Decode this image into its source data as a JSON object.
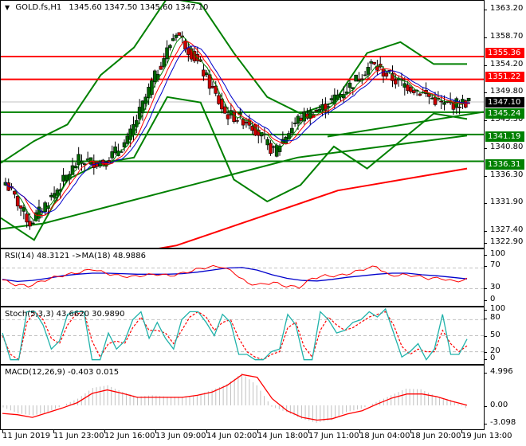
{
  "header": {
    "symbol": "GOLD.fs,H1",
    "ohlc": "1345.60 1347.50 1345.60 1347.10",
    "menu_icon": "triangle-down-icon"
  },
  "colors": {
    "resistance": "#ff0000",
    "support": "#008000",
    "current_price": "#000000",
    "candle_up": "#006400",
    "candle_down": "#cc0000",
    "rsi": "#ff0000",
    "rsi_ma": "#0000cc",
    "stoch_main": "#20b2aa",
    "stoch_signal": "#ff0000",
    "macd_hist": "#c0c0c0",
    "macd_signal": "#ff0000"
  },
  "price_axis": {
    "ticks": [
      "1363.20",
      "1358.70",
      "1354.20",
      "1349.80",
      "1345.30",
      "1340.80",
      "1336.30",
      "1331.90",
      "1327.40",
      "1322.90"
    ],
    "badges": [
      {
        "label": "1355.36",
        "type": "resistance"
      },
      {
        "label": "1351.22",
        "type": "resistance"
      },
      {
        "label": "1347.10",
        "type": "current_price"
      },
      {
        "label": "1345.24",
        "type": "support"
      },
      {
        "label": "1341.19",
        "type": "support"
      },
      {
        "label": "1336.31",
        "type": "support"
      }
    ]
  },
  "rsi_panel": {
    "title": "RSI(14) 48.3121  ->MA(18) 48.9886",
    "ticks": [
      "100",
      "70",
      "30",
      "0"
    ]
  },
  "stoch_panel": {
    "title": "Stoch(5,3,3) 43.6620 30.9890",
    "ticks": [
      "100",
      "80",
      "50",
      "20",
      "0"
    ]
  },
  "macd_panel": {
    "title": "MACD(12,26,9) -0.403 0.015",
    "ticks": [
      "4.996",
      "0.00",
      "-3.098"
    ]
  },
  "time_axis": {
    "labels": [
      "11 Jun 2019",
      "11 Jun 23:00",
      "12 Jun 16:00",
      "13 Jun 09:00",
      "14 Jun 02:00",
      "14 Jun 18:00",
      "17 Jun 11:00",
      "18 Jun 04:00",
      "18 Jun 20:00",
      "19 Jun 13:00"
    ]
  },
  "chart_data": [
    {
      "type": "line",
      "title": "GOLD.fs,H1 1345.60 1347.50 1345.60 1347.10",
      "ylim": [
        1320.6,
        1365.5
      ],
      "x": [
        "11 Jun 2019",
        "11 Jun 23:00",
        "12 Jun 16:00",
        "13 Jun 09:00",
        "14 Jun 02:00",
        "14 Jun 18:00",
        "17 Jun 11:00",
        "18 Jun 04:00",
        "18 Jun 20:00",
        "19 Jun 13:00"
      ],
      "horizontal_levels": {
        "resistance": [
          1355.36,
          1351.22
        ],
        "support": [
          1345.24,
          1341.19,
          1336.31
        ],
        "current_price": 1347.1
      },
      "series": [
        {
          "name": "Close (approx)",
          "values": [
            1332.5,
            1325.0,
            1330.5,
            1336.5,
            1336.0,
            1340.0,
            1350.5,
            1360.0,
            1353.5,
            1345.0,
            1343.5,
            1338.0,
            1344.0,
            1346.0,
            1349.5,
            1354.0,
            1351.0,
            1349.0,
            1346.5,
            1347.1
          ]
        },
        {
          "name": "Bollinger upper",
          "values": [
            1336,
            1340,
            1343,
            1352,
            1357,
            1366,
            1365,
            1356,
            1348,
            1345,
            1347,
            1356,
            1358,
            1354,
            1354
          ]
        },
        {
          "name": "Bollinger lower",
          "values": [
            1326,
            1322,
            1333,
            1336,
            1337,
            1348,
            1347,
            1333,
            1329,
            1332,
            1339,
            1335,
            1340,
            1345,
            1344
          ]
        },
        {
          "name": "MA long (green)",
          "values": [
            1324,
            1325,
            1327,
            1329,
            1331,
            1333,
            1335,
            1337,
            1338,
            1339,
            1340,
            1341
          ]
        },
        {
          "name": "MA 200 (red)",
          "values": [
            1320,
            1321,
            1323,
            1325,
            1327,
            1329,
            1331,
            1332,
            1333,
            1334,
            1335
          ]
        }
      ]
    },
    {
      "type": "line",
      "title": "RSI(14) 48.3121 ->MA(18) 48.9886",
      "ylim": [
        0,
        100
      ],
      "levels": [
        70,
        30
      ],
      "series": [
        {
          "name": "RSI(14)",
          "values": [
            47,
            38,
            35,
            44,
            52,
            57,
            62,
            68,
            60,
            55,
            53,
            56,
            58,
            55,
            60,
            67,
            72,
            73,
            60,
            40,
            38,
            42,
            35,
            33,
            50,
            55,
            55,
            60,
            68,
            73,
            55,
            57,
            55,
            50,
            50,
            44,
            48
          ]
        },
        {
          "name": "MA(18)",
          "values": [
            48,
            44,
            46,
            50,
            55,
            58,
            60,
            60,
            59,
            58,
            58,
            58,
            59,
            62,
            66,
            70,
            71,
            66,
            57,
            50,
            46,
            45,
            48,
            52,
            55,
            58,
            60,
            60,
            57,
            55,
            52,
            49
          ]
        }
      ]
    },
    {
      "type": "line",
      "title": "Stoch(5,3,3) 43.6620 30.9890",
      "ylim": [
        0,
        100
      ],
      "levels": [
        80,
        50,
        20
      ],
      "series": [
        {
          "name": "%K",
          "values": [
            55,
            5,
            5,
            95,
            95,
            70,
            25,
            40,
            90,
            95,
            95,
            5,
            5,
            55,
            25,
            40,
            80,
            95,
            45,
            75,
            45,
            25,
            80,
            95,
            95,
            75,
            50,
            90,
            75,
            15,
            15,
            5,
            5,
            20,
            25,
            90,
            70,
            5,
            5,
            95,
            80,
            55,
            60,
            75,
            80,
            95,
            85,
            100,
            55,
            10,
            20,
            35,
            5,
            25,
            90,
            15,
            15,
            43.66
          ]
        },
        {
          "name": "%D",
          "values": [
            50,
            15,
            5,
            75,
            95,
            80,
            45,
            35,
            70,
            90,
            95,
            40,
            10,
            35,
            40,
            35,
            65,
            85,
            60,
            60,
            55,
            35,
            60,
            85,
            95,
            85,
            60,
            75,
            80,
            45,
            20,
            10,
            5,
            15,
            20,
            65,
            75,
            30,
            10,
            60,
            85,
            70,
            60,
            65,
            75,
            85,
            90,
            95,
            70,
            30,
            15,
            25,
            20,
            20,
            60,
            35,
            20,
            30.99
          ]
        }
      ]
    },
    {
      "type": "bar",
      "title": "MACD(12,26,9) -0.403 0.015",
      "ylim": [
        -3.098,
        4.996
      ],
      "series": [
        {
          "name": "MACD histogram",
          "values": [
            -0.3,
            -1.2,
            -1.5,
            -1.0,
            0.0,
            1.0,
            2.6,
            3.0,
            2.0,
            1.3,
            1.5,
            1.3,
            1.3,
            1.5,
            2.3,
            3.2,
            4.8,
            3.0,
            -0.2,
            -1.0,
            -2.0,
            -2.6,
            -2.2,
            -1.0,
            -0.5,
            0.5,
            1.5,
            2.5,
            2.4,
            1.4,
            0.8,
            -0.4
          ]
        },
        {
          "name": "Signal",
          "values": [
            -1.2,
            -1.4,
            -1.8,
            -1.1,
            -0.4,
            0.4,
            1.8,
            2.3,
            1.8,
            1.2,
            1.2,
            1.2,
            1.2,
            1.5,
            2.0,
            3.0,
            4.6,
            4.2,
            1.0,
            -0.8,
            -1.8,
            -2.2,
            -2.0,
            -1.3,
            -0.8,
            0.2,
            1.1,
            1.7,
            1.7,
            1.3,
            0.6,
            0.015
          ]
        }
      ]
    }
  ]
}
